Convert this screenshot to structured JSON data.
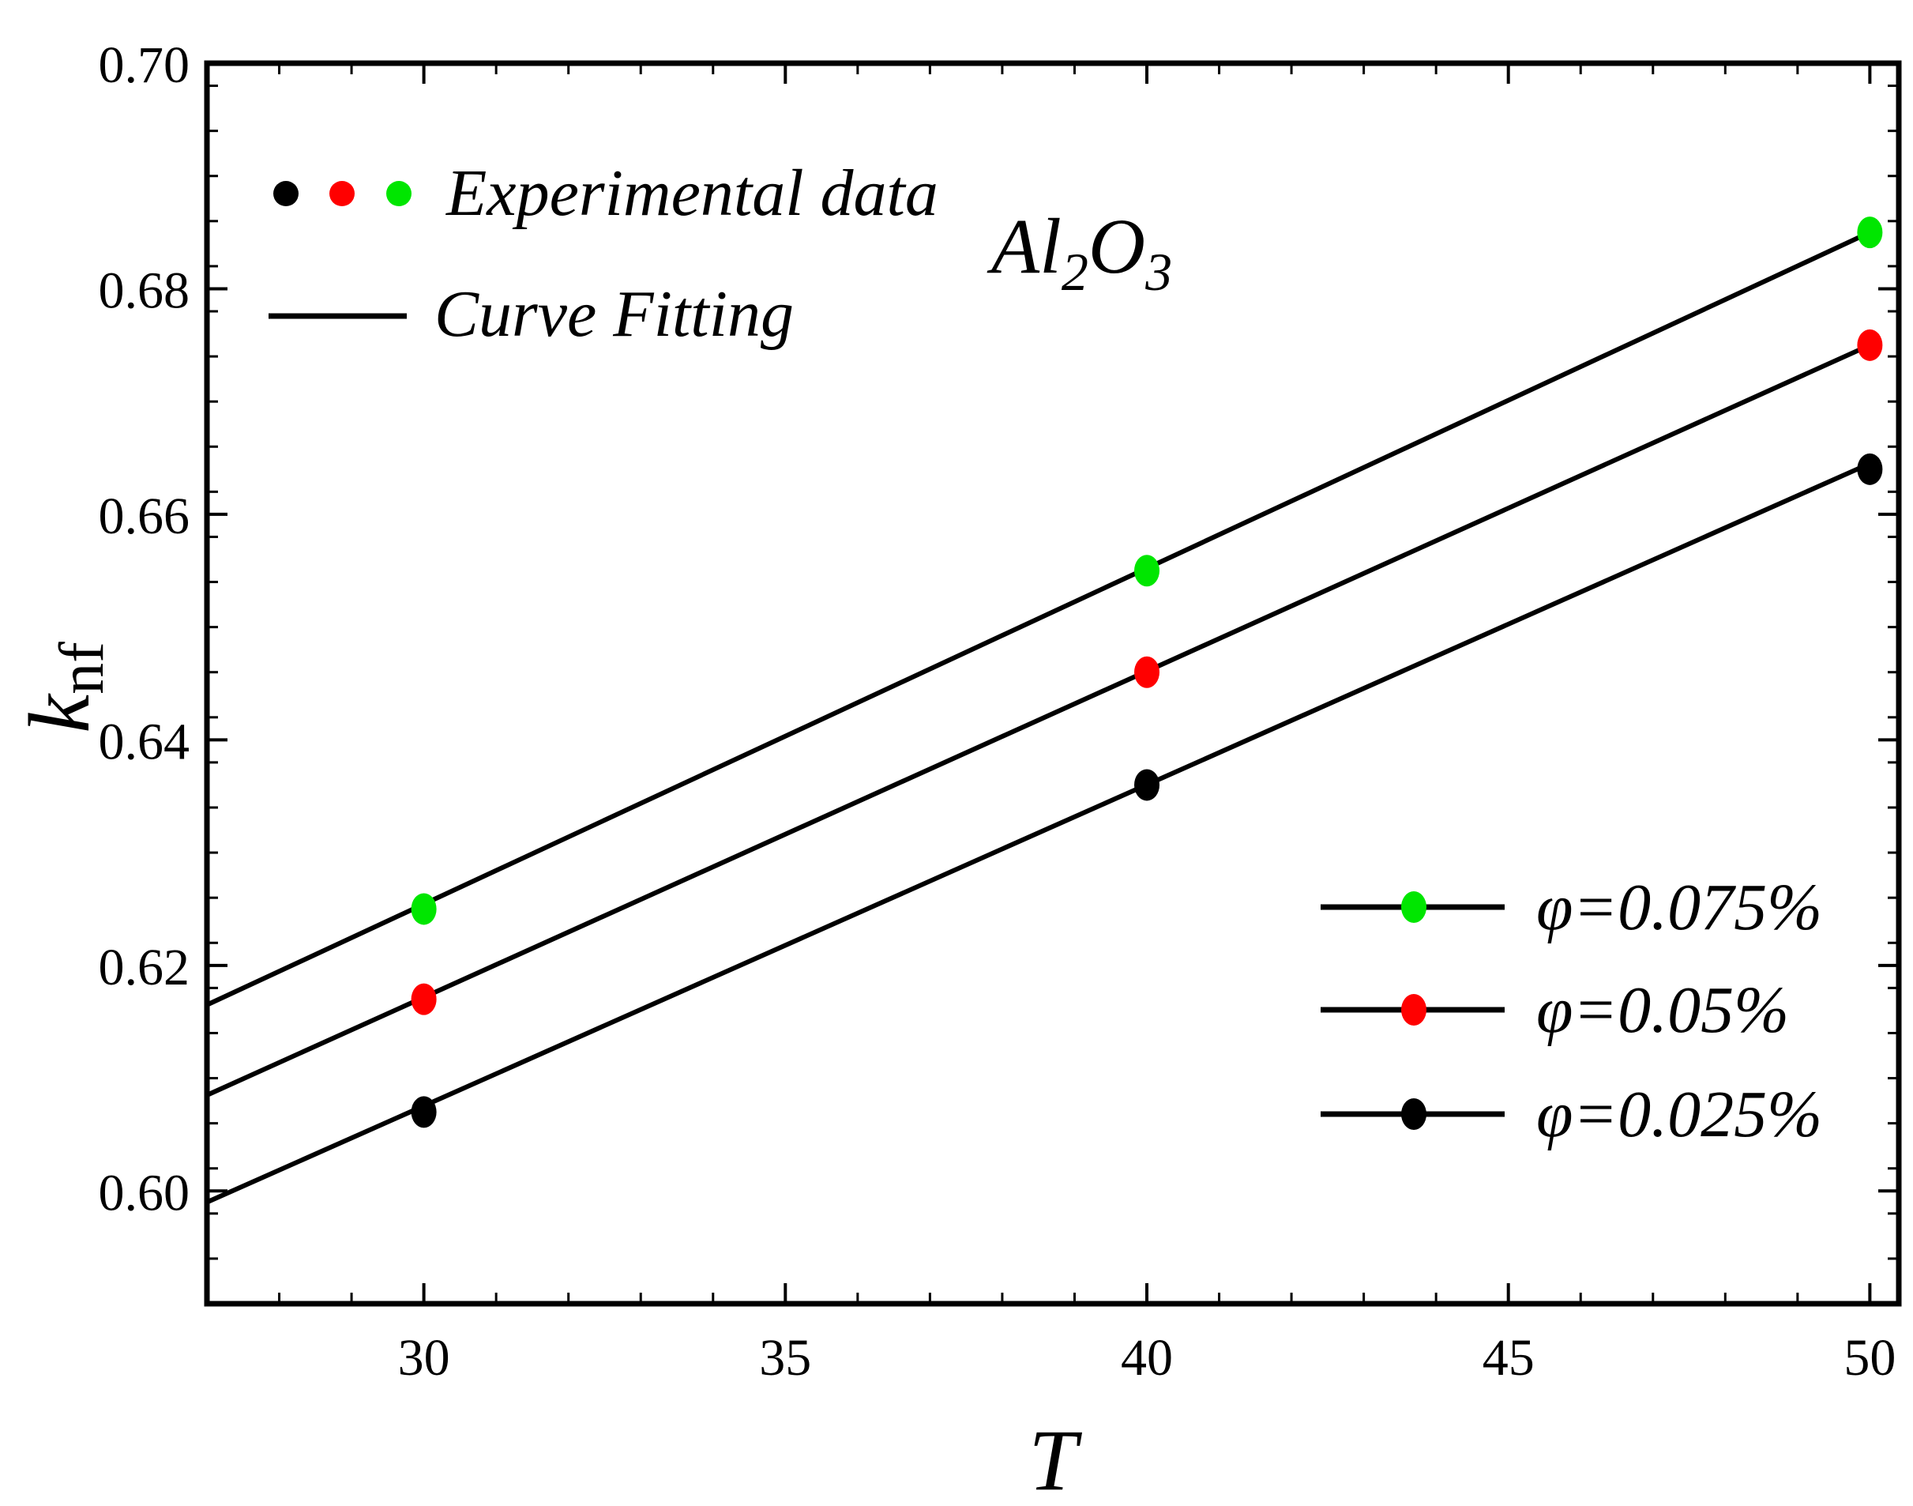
{
  "chart_data": {
    "type": "scatter",
    "title": "",
    "xlabel": "T",
    "ylabel": "k",
    "ylabel_subscript": "nf",
    "xlim": [
      27,
      50.4
    ],
    "ylim": [
      0.59,
      0.7
    ],
    "x_ticks": [
      "30",
      "35",
      "40",
      "45",
      "50"
    ],
    "x_tick_values": [
      30,
      35,
      40,
      45,
      50
    ],
    "y_ticks": [
      "0.60",
      "0.62",
      "0.64",
      "0.66",
      "0.68",
      "0.70"
    ],
    "y_tick_values": [
      0.6,
      0.62,
      0.64,
      0.66,
      0.68,
      0.7
    ],
    "annotation": {
      "text_main": "Al",
      "sub1": "2",
      "text_mid": "O",
      "sub2": "3"
    },
    "legend_top": {
      "markers_label": "Experimental data",
      "line_label": "Curve Fitting"
    },
    "series": [
      {
        "name": "φ=0.075%",
        "color": "#00e600",
        "x": [
          30,
          40,
          50
        ],
        "y": [
          0.625,
          0.655,
          0.685
        ],
        "fit_x": [
          27,
          50
        ],
        "fit_y": [
          0.6165,
          0.685
        ]
      },
      {
        "name": "φ=0.05%",
        "color": "#ff0000",
        "x": [
          30,
          40,
          50
        ],
        "y": [
          0.617,
          0.646,
          0.675
        ],
        "fit_x": [
          27,
          50
        ],
        "fit_y": [
          0.6085,
          0.675
        ]
      },
      {
        "name": "φ=0.025%",
        "color": "#000000",
        "x": [
          30,
          40,
          50
        ],
        "y": [
          0.607,
          0.636,
          0.664
        ],
        "fit_x": [
          27,
          50
        ],
        "fit_y": [
          0.599,
          0.6645
        ]
      }
    ]
  }
}
